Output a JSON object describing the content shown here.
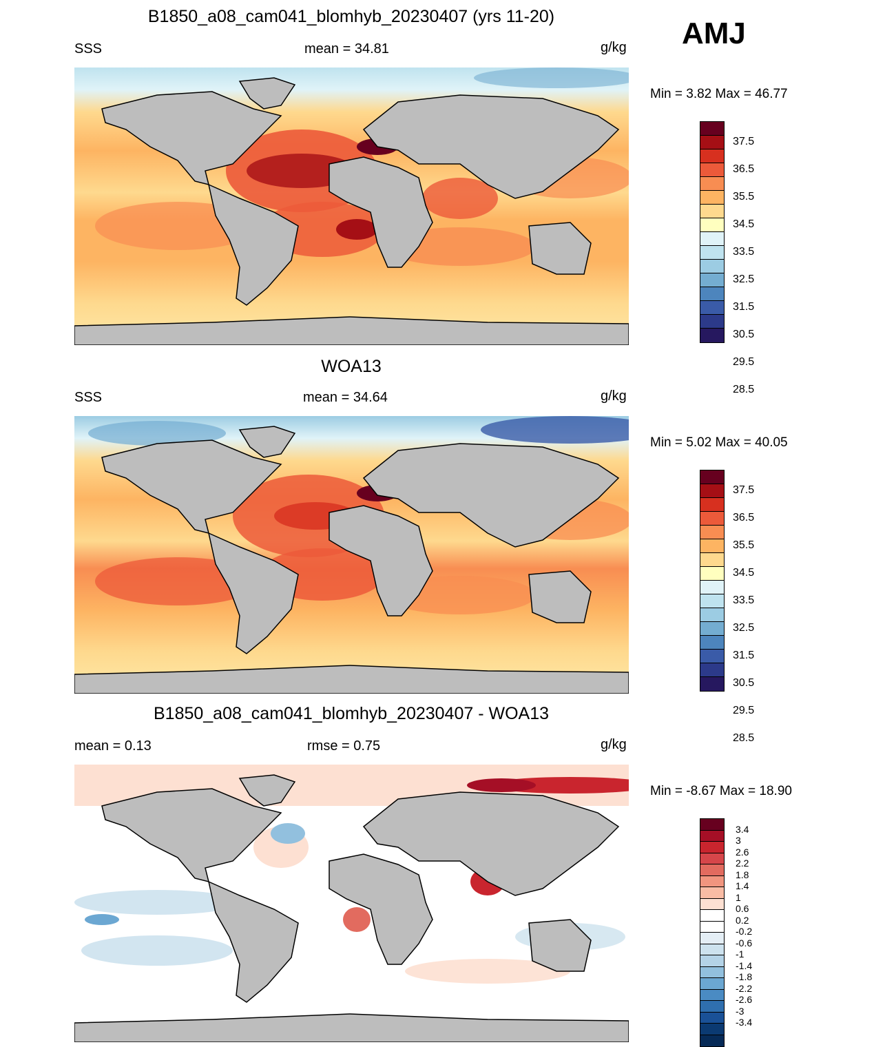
{
  "season": "AMJ",
  "units": "g/kg",
  "panels": [
    {
      "title": "B1850_a08_cam041_blomhyb_20230407 (yrs 11-20)",
      "left_label": "SSS",
      "center_label": "mean =  34.81",
      "min_max": "Min =   3.82 Max =  46.77",
      "colorbar_labels": [
        "37.5",
        "36.5",
        "35.5",
        "34.5",
        "33.5",
        "32.5",
        "31.5",
        "30.5",
        "29.5",
        "28.5"
      ]
    },
    {
      "title": "WOA13",
      "left_label": "SSS",
      "center_label": "mean =  34.64",
      "min_max": "Min =   5.02 Max =  40.05",
      "colorbar_labels": [
        "37.5",
        "36.5",
        "35.5",
        "34.5",
        "33.5",
        "32.5",
        "31.5",
        "30.5",
        "29.5",
        "28.5"
      ]
    },
    {
      "title": "B1850_a08_cam041_blomhyb_20230407 - WOA13",
      "left_label": "mean =   0.13",
      "center_label": "rmse =   0.75",
      "min_max": "Min =  -8.67 Max =  18.90",
      "colorbar_labels": [
        "3.4",
        "3",
        "2.6",
        "2.2",
        "1.8",
        "1.4",
        "1",
        "0.6",
        "0.2",
        "-0.2",
        "-0.6",
        "-1",
        "-1.4",
        "-1.8",
        "-2.2",
        "-2.6",
        "-3",
        "-3.4"
      ]
    }
  ],
  "colors": {
    "land": "#bdbdbd",
    "sss_scale": [
      "#67001f",
      "#a50f15",
      "#d7301f",
      "#ec5a3a",
      "#f88d52",
      "#fdb462",
      "#fed98e",
      "#ffffbf",
      "#e0f3f8",
      "#bfe3ef",
      "#9ccce3",
      "#74add1",
      "#4d85bd",
      "#3a5ba8",
      "#2c3a8a",
      "#26185f"
    ],
    "diff_scale": [
      "#67001f",
      "#a50f26",
      "#c9252e",
      "#d6464a",
      "#e26b5f",
      "#f1957f",
      "#f9bca5",
      "#fde0d2",
      "#ffffff",
      "#ffffff",
      "#e4eef5",
      "#cde2ee",
      "#b4d3e7",
      "#92c0de",
      "#6ba7d2",
      "#4a8bc3",
      "#2f6faf",
      "#1a5197",
      "#0b3a72",
      "#062a57"
    ]
  }
}
